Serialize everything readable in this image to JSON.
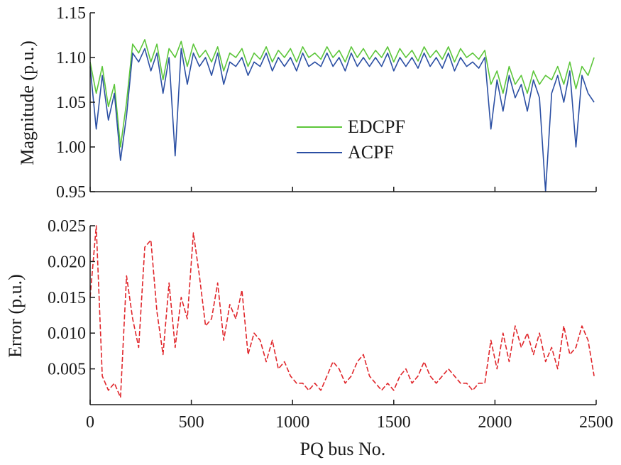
{
  "chart_data": [
    {
      "type": "line",
      "ylabel": "Magnitude (p.u.)",
      "xlim": [
        0,
        2500
      ],
      "ylim": [
        0.95,
        1.15
      ],
      "yticks": [
        "0.95",
        "1.00",
        "1.05",
        "1.10",
        "1.15"
      ],
      "grid": false,
      "legend": "center",
      "x": [
        0,
        30,
        60,
        90,
        120,
        150,
        180,
        210,
        240,
        270,
        300,
        330,
        360,
        390,
        420,
        450,
        480,
        510,
        540,
        570,
        600,
        630,
        660,
        690,
        720,
        750,
        780,
        810,
        840,
        870,
        900,
        930,
        960,
        990,
        1020,
        1050,
        1080,
        1110,
        1140,
        1170,
        1200,
        1230,
        1260,
        1290,
        1320,
        1350,
        1380,
        1410,
        1440,
        1470,
        1500,
        1530,
        1560,
        1590,
        1620,
        1650,
        1680,
        1710,
        1740,
        1770,
        1800,
        1830,
        1860,
        1890,
        1920,
        1950,
        1980,
        2010,
        2040,
        2070,
        2100,
        2130,
        2160,
        2190,
        2220,
        2250,
        2280,
        2310,
        2340,
        2370,
        2400,
        2430,
        2460,
        2490
      ],
      "series": [
        {
          "name": "EDCPF",
          "color": "#5cc63a",
          "values": [
            1.095,
            1.06,
            1.09,
            1.045,
            1.07,
            1.0,
            1.05,
            1.115,
            1.105,
            1.12,
            1.095,
            1.115,
            1.075,
            1.11,
            1.1,
            1.118,
            1.09,
            1.115,
            1.1,
            1.108,
            1.095,
            1.112,
            1.085,
            1.105,
            1.1,
            1.11,
            1.09,
            1.105,
            1.098,
            1.112,
            1.095,
            1.108,
            1.1,
            1.11,
            1.095,
            1.112,
            1.1,
            1.105,
            1.098,
            1.112,
            1.1,
            1.108,
            1.095,
            1.112,
            1.1,
            1.11,
            1.098,
            1.108,
            1.1,
            1.112,
            1.095,
            1.11,
            1.1,
            1.108,
            1.096,
            1.112,
            1.1,
            1.108,
            1.098,
            1.112,
            1.095,
            1.11,
            1.1,
            1.105,
            1.098,
            1.108,
            1.07,
            1.085,
            1.06,
            1.09,
            1.07,
            1.08,
            1.06,
            1.085,
            1.07,
            1.08,
            1.075,
            1.09,
            1.07,
            1.095,
            1.065,
            1.09,
            1.08,
            1.1
          ]
        },
        {
          "name": "ACPF",
          "color": "#2b4fa3",
          "values": [
            1.09,
            1.02,
            1.08,
            1.03,
            1.06,
            0.985,
            1.035,
            1.105,
            1.095,
            1.11,
            1.085,
            1.105,
            1.06,
            1.1,
            0.99,
            1.11,
            1.07,
            1.105,
            1.09,
            1.1,
            1.08,
            1.105,
            1.07,
            1.095,
            1.09,
            1.1,
            1.08,
            1.095,
            1.09,
            1.105,
            1.085,
            1.1,
            1.09,
            1.1,
            1.085,
            1.105,
            1.09,
            1.095,
            1.09,
            1.105,
            1.09,
            1.1,
            1.085,
            1.105,
            1.09,
            1.1,
            1.09,
            1.1,
            1.09,
            1.105,
            1.085,
            1.1,
            1.09,
            1.1,
            1.088,
            1.105,
            1.09,
            1.1,
            1.088,
            1.105,
            1.085,
            1.1,
            1.09,
            1.095,
            1.088,
            1.1,
            1.02,
            1.075,
            1.04,
            1.08,
            1.055,
            1.07,
            1.04,
            1.075,
            1.055,
            0.95,
            1.06,
            1.08,
            1.05,
            1.085,
            1.0,
            1.08,
            1.06,
            1.05
          ]
        }
      ]
    },
    {
      "type": "line",
      "xlabel": "PQ bus No.",
      "ylabel": "Error (p.u.)",
      "xlim": [
        0,
        2500
      ],
      "ylim": [
        0,
        0.025
      ],
      "xticks": [
        "0",
        "500",
        "1000",
        "1500",
        "2000",
        "2500"
      ],
      "yticks": [
        "0.005",
        "0.010",
        "0.015",
        "0.020",
        "0.025"
      ],
      "grid": false,
      "series": [
        {
          "color": "#e0262b",
          "x": [
            0,
            30,
            60,
            90,
            120,
            150,
            180,
            210,
            240,
            270,
            300,
            330,
            360,
            390,
            420,
            450,
            480,
            510,
            540,
            570,
            600,
            630,
            660,
            690,
            720,
            750,
            780,
            810,
            840,
            870,
            900,
            930,
            960,
            990,
            1020,
            1050,
            1080,
            1110,
            1140,
            1170,
            1200,
            1230,
            1260,
            1290,
            1320,
            1350,
            1380,
            1410,
            1440,
            1470,
            1500,
            1530,
            1560,
            1590,
            1620,
            1650,
            1680,
            1710,
            1740,
            1770,
            1800,
            1830,
            1860,
            1890,
            1920,
            1950,
            1980,
            2010,
            2040,
            2070,
            2100,
            2130,
            2160,
            2190,
            2220,
            2250,
            2280,
            2310,
            2340,
            2370,
            2400,
            2430,
            2460,
            2490
          ],
          "values": [
            0.015,
            0.025,
            0.004,
            0.002,
            0.003,
            0.001,
            0.018,
            0.012,
            0.008,
            0.022,
            0.023,
            0.013,
            0.007,
            0.017,
            0.008,
            0.015,
            0.012,
            0.024,
            0.018,
            0.011,
            0.012,
            0.017,
            0.009,
            0.014,
            0.012,
            0.016,
            0.007,
            0.01,
            0.009,
            0.006,
            0.009,
            0.005,
            0.006,
            0.004,
            0.003,
            0.003,
            0.002,
            0.003,
            0.002,
            0.004,
            0.006,
            0.005,
            0.003,
            0.004,
            0.006,
            0.007,
            0.004,
            0.003,
            0.002,
            0.003,
            0.002,
            0.004,
            0.005,
            0.003,
            0.004,
            0.006,
            0.004,
            0.003,
            0.004,
            0.005,
            0.004,
            0.003,
            0.003,
            0.002,
            0.003,
            0.003,
            0.009,
            0.005,
            0.01,
            0.006,
            0.011,
            0.008,
            0.01,
            0.007,
            0.01,
            0.006,
            0.008,
            0.005,
            0.011,
            0.007,
            0.008,
            0.011,
            0.009,
            0.004
          ]
        }
      ]
    }
  ]
}
